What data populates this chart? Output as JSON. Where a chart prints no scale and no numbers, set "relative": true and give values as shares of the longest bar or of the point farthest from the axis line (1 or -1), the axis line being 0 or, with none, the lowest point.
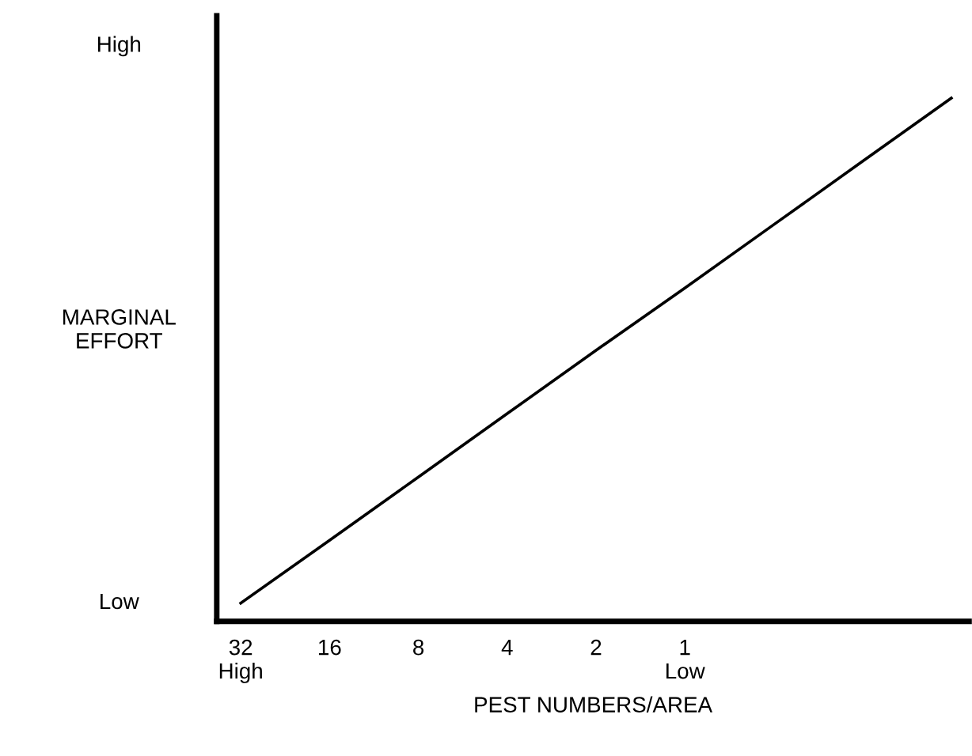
{
  "chart_data": {
    "type": "line",
    "relative": true,
    "xlabel": "PEST NUMBERS/AREA",
    "ylabel": "MARGINAL\nEFFORT",
    "categories": [
      "32\nHigh",
      "16",
      "8",
      "4",
      "2",
      "1\nLow",
      null,
      null,
      null
    ],
    "series": [
      {
        "color": "#000000",
        "values": [
          0.035,
          0.155,
          0.276,
          0.397,
          0.518,
          0.637,
          0.758,
          0.879,
          1.0
        ]
      }
    ],
    "annotations": [
      "High",
      "Low"
    ],
    "grid": false,
    "legend": false,
    "marker": "none",
    "line_style": "solid"
  }
}
